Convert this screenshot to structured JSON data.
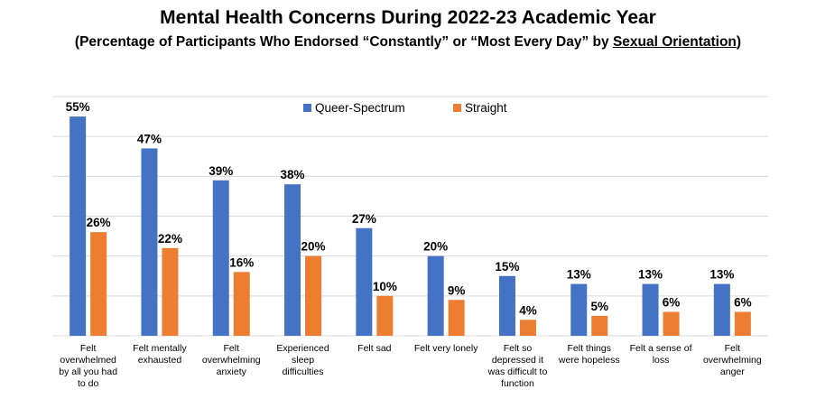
{
  "title": "Mental Health Concerns During 2022-23 Academic Year",
  "subtitle_prefix": "(Percentage of Participants Who Endorsed “Constantly” or “Most Every Day” by ",
  "subtitle_emphasis": "Sexual Orientation",
  "subtitle_suffix": ")",
  "colors": {
    "queer": "#4472C4",
    "straight": "#ED7D31",
    "grid": "#D9D9D9"
  },
  "chart_data": {
    "type": "bar",
    "title": "Mental Health Concerns During 2022-23 Academic Year",
    "categories": [
      [
        "Felt",
        "overwhelmed",
        "by all you had",
        "to do"
      ],
      [
        "Felt mentally",
        "exhausted"
      ],
      [
        "Felt",
        "overwhelming",
        "anxiety"
      ],
      [
        "Experienced",
        "sleep",
        "difficulties"
      ],
      [
        "Felt sad"
      ],
      [
        "Felt very lonely"
      ],
      [
        "Felt so",
        "depressed it",
        "was difficult to",
        "function"
      ],
      [
        "Felt things",
        "were hopeless"
      ],
      [
        "Felt a sense of",
        "loss"
      ],
      [
        "Felt",
        "overwhelming",
        "anger"
      ]
    ],
    "series": [
      {
        "name": "Queer-Spectrum",
        "values": [
          55,
          47,
          39,
          38,
          27,
          20,
          15,
          13,
          13,
          13
        ]
      },
      {
        "name": "Straight",
        "values": [
          26,
          22,
          16,
          20,
          10,
          9,
          4,
          5,
          6,
          6
        ]
      }
    ],
    "value_suffix": "%",
    "ylim": [
      0,
      60
    ],
    "grid": true,
    "legend_position": "top-center"
  }
}
